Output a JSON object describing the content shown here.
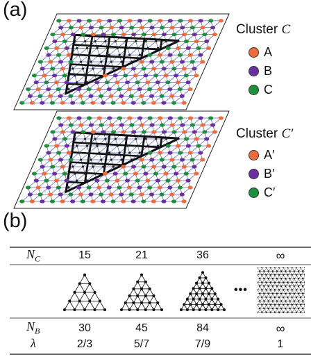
{
  "panel_a_label": "(a)",
  "panel_b_label": "(b)",
  "legend_top": {
    "title_prefix": "Cluster ",
    "title_var": "C",
    "items": [
      {
        "label": "A",
        "color": "#f26a3a"
      },
      {
        "label": "B",
        "color": "#6b2fa3"
      },
      {
        "label": "C",
        "color": "#1a8f3c"
      }
    ]
  },
  "legend_bottom": {
    "title_prefix": "Cluster ",
    "title_var": "C′",
    "items": [
      {
        "label": "A′",
        "color": "#f26a3a"
      },
      {
        "label": "B′",
        "color": "#6b2fa3"
      },
      {
        "label": "C′",
        "color": "#1a8f3c"
      }
    ]
  },
  "table": {
    "nc_symbol": "N",
    "nc_sub": "C",
    "nb_symbol": "N",
    "nb_sub": "B",
    "lambda_symbol": "λ",
    "ellipsis": "•••",
    "nc_values": [
      "15",
      "21",
      "36",
      "∞"
    ],
    "nb_values": [
      "30",
      "45",
      "84",
      "∞"
    ],
    "lambda_values": [
      "2/3",
      "5/7",
      "7/9",
      "1"
    ]
  },
  "colors": {
    "lattice_line": "#4a5ab8",
    "cluster_bond": "#111111"
  }
}
